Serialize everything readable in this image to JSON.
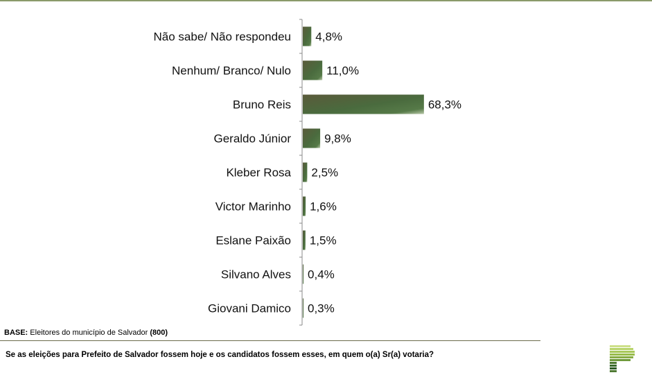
{
  "chart_data": {
    "type": "bar",
    "orientation": "horizontal",
    "categories": [
      "Não sabe/ Não respondeu",
      "Nenhum/ Branco/ Nulo",
      "Bruno Reis",
      "Geraldo Júnior",
      "Kleber Rosa",
      "Victor Marinho",
      "Eslane Paixão",
      "Silvano Alves",
      "Giovani Damico"
    ],
    "values": [
      4.8,
      11.0,
      68.3,
      9.8,
      2.5,
      1.6,
      1.5,
      0.4,
      0.3
    ],
    "value_labels": [
      "4,8%",
      "11,0%",
      "68,3%",
      "9,8%",
      "2,5%",
      "1,6%",
      "1,5%",
      "0,4%",
      "0,3%"
    ],
    "bar_color": "#4a6b3e",
    "grid": false,
    "legend": "none"
  },
  "footer": {
    "base_label": "BASE:",
    "base_text": "Eleitores do município de Salvador",
    "base_count": "(800)",
    "question": "Se as eleições para Prefeito de Salvador fossem hoje e os candidatos fossem esses, em quem o(a) Sr(a) votaria?"
  }
}
